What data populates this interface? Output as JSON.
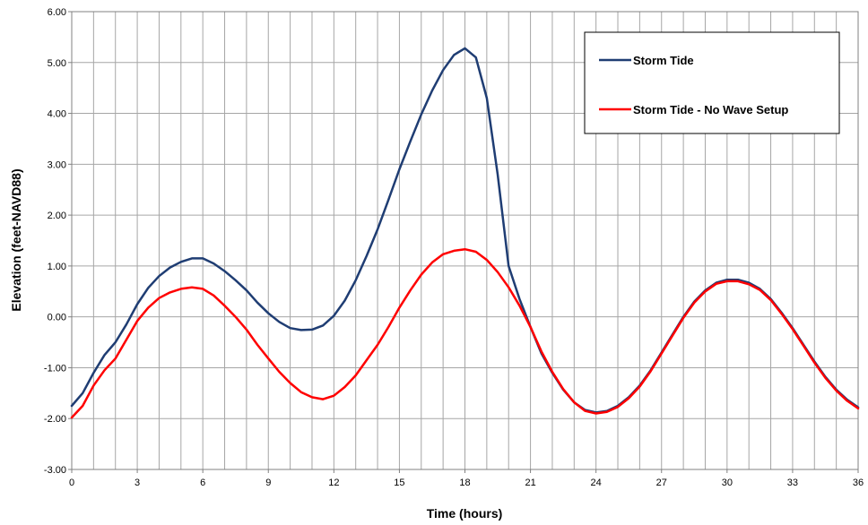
{
  "chart_data": {
    "type": "line",
    "title": "",
    "xlabel": "Time (hours)",
    "ylabel": "Elevation (feet-NAVD88)",
    "xlim": [
      0,
      36
    ],
    "ylim": [
      -3,
      6
    ],
    "x_tick_labels": [
      "0",
      "3",
      "6",
      "9",
      "12",
      "15",
      "18",
      "21",
      "24",
      "27",
      "30",
      "33",
      "36"
    ],
    "y_tick_labels": [
      "6.00",
      "5.00",
      "4.00",
      "3.00",
      "2.00",
      "1.00",
      "0.00",
      "-1.00",
      "-2.00",
      "-3.00"
    ],
    "grid": true,
    "legend_position": "top-right",
    "x": [
      0,
      0.5,
      1,
      1.5,
      2,
      2.5,
      3,
      3.5,
      4,
      4.5,
      5,
      5.5,
      6,
      6.5,
      7,
      7.5,
      8,
      8.5,
      9,
      9.5,
      10,
      10.5,
      11,
      11.5,
      12,
      12.5,
      13,
      13.5,
      14,
      14.5,
      15,
      15.5,
      16,
      16.5,
      17,
      17.5,
      18,
      18.5,
      19,
      19.5,
      20,
      20.5,
      21,
      21.5,
      22,
      22.5,
      23,
      23.5,
      24,
      24.5,
      25,
      25.5,
      26,
      26.5,
      27,
      27.5,
      28,
      28.5,
      29,
      29.5,
      30,
      30.5,
      31,
      31.5,
      32,
      32.5,
      33,
      33.5,
      34,
      34.5,
      35,
      35.5,
      36
    ],
    "series": [
      {
        "name": "Storm Tide",
        "color": "#1f3d73",
        "values": [
          -1.75,
          -1.5,
          -1.1,
          -0.75,
          -0.5,
          -0.15,
          0.25,
          0.57,
          0.8,
          0.97,
          1.08,
          1.15,
          1.15,
          1.05,
          0.9,
          0.72,
          0.52,
          0.28,
          0.07,
          -0.1,
          -0.22,
          -0.26,
          -0.25,
          -0.17,
          0.02,
          0.32,
          0.72,
          1.2,
          1.72,
          2.3,
          2.9,
          3.45,
          3.98,
          4.45,
          4.85,
          5.15,
          5.28,
          5.1,
          4.3,
          2.8,
          1.0,
          0.35,
          -0.2,
          -0.72,
          -1.1,
          -1.43,
          -1.68,
          -1.83,
          -1.88,
          -1.85,
          -1.75,
          -1.58,
          -1.35,
          -1.05,
          -0.7,
          -0.35,
          0.0,
          0.3,
          0.52,
          0.67,
          0.73,
          0.73,
          0.67,
          0.55,
          0.35,
          0.08,
          -0.22,
          -0.55,
          -0.88,
          -1.18,
          -1.43,
          -1.63,
          -1.78
        ]
      },
      {
        "name": "Storm Tide - No Wave Setup",
        "color": "#ff0000",
        "values": [
          -1.98,
          -1.75,
          -1.35,
          -1.05,
          -0.82,
          -0.45,
          -0.08,
          0.18,
          0.37,
          0.48,
          0.55,
          0.58,
          0.55,
          0.42,
          0.22,
          0.0,
          -0.25,
          -0.55,
          -0.82,
          -1.08,
          -1.3,
          -1.48,
          -1.58,
          -1.62,
          -1.55,
          -1.38,
          -1.15,
          -0.85,
          -0.55,
          -0.2,
          0.18,
          0.52,
          0.83,
          1.07,
          1.23,
          1.3,
          1.33,
          1.28,
          1.12,
          0.88,
          0.58,
          0.22,
          -0.2,
          -0.68,
          -1.08,
          -1.42,
          -1.68,
          -1.85,
          -1.9,
          -1.87,
          -1.77,
          -1.6,
          -1.37,
          -1.07,
          -0.72,
          -0.37,
          -0.02,
          0.28,
          0.5,
          0.65,
          0.7,
          0.7,
          0.64,
          0.53,
          0.33,
          0.06,
          -0.24,
          -0.57,
          -0.9,
          -1.2,
          -1.45,
          -1.65,
          -1.8
        ]
      }
    ]
  }
}
